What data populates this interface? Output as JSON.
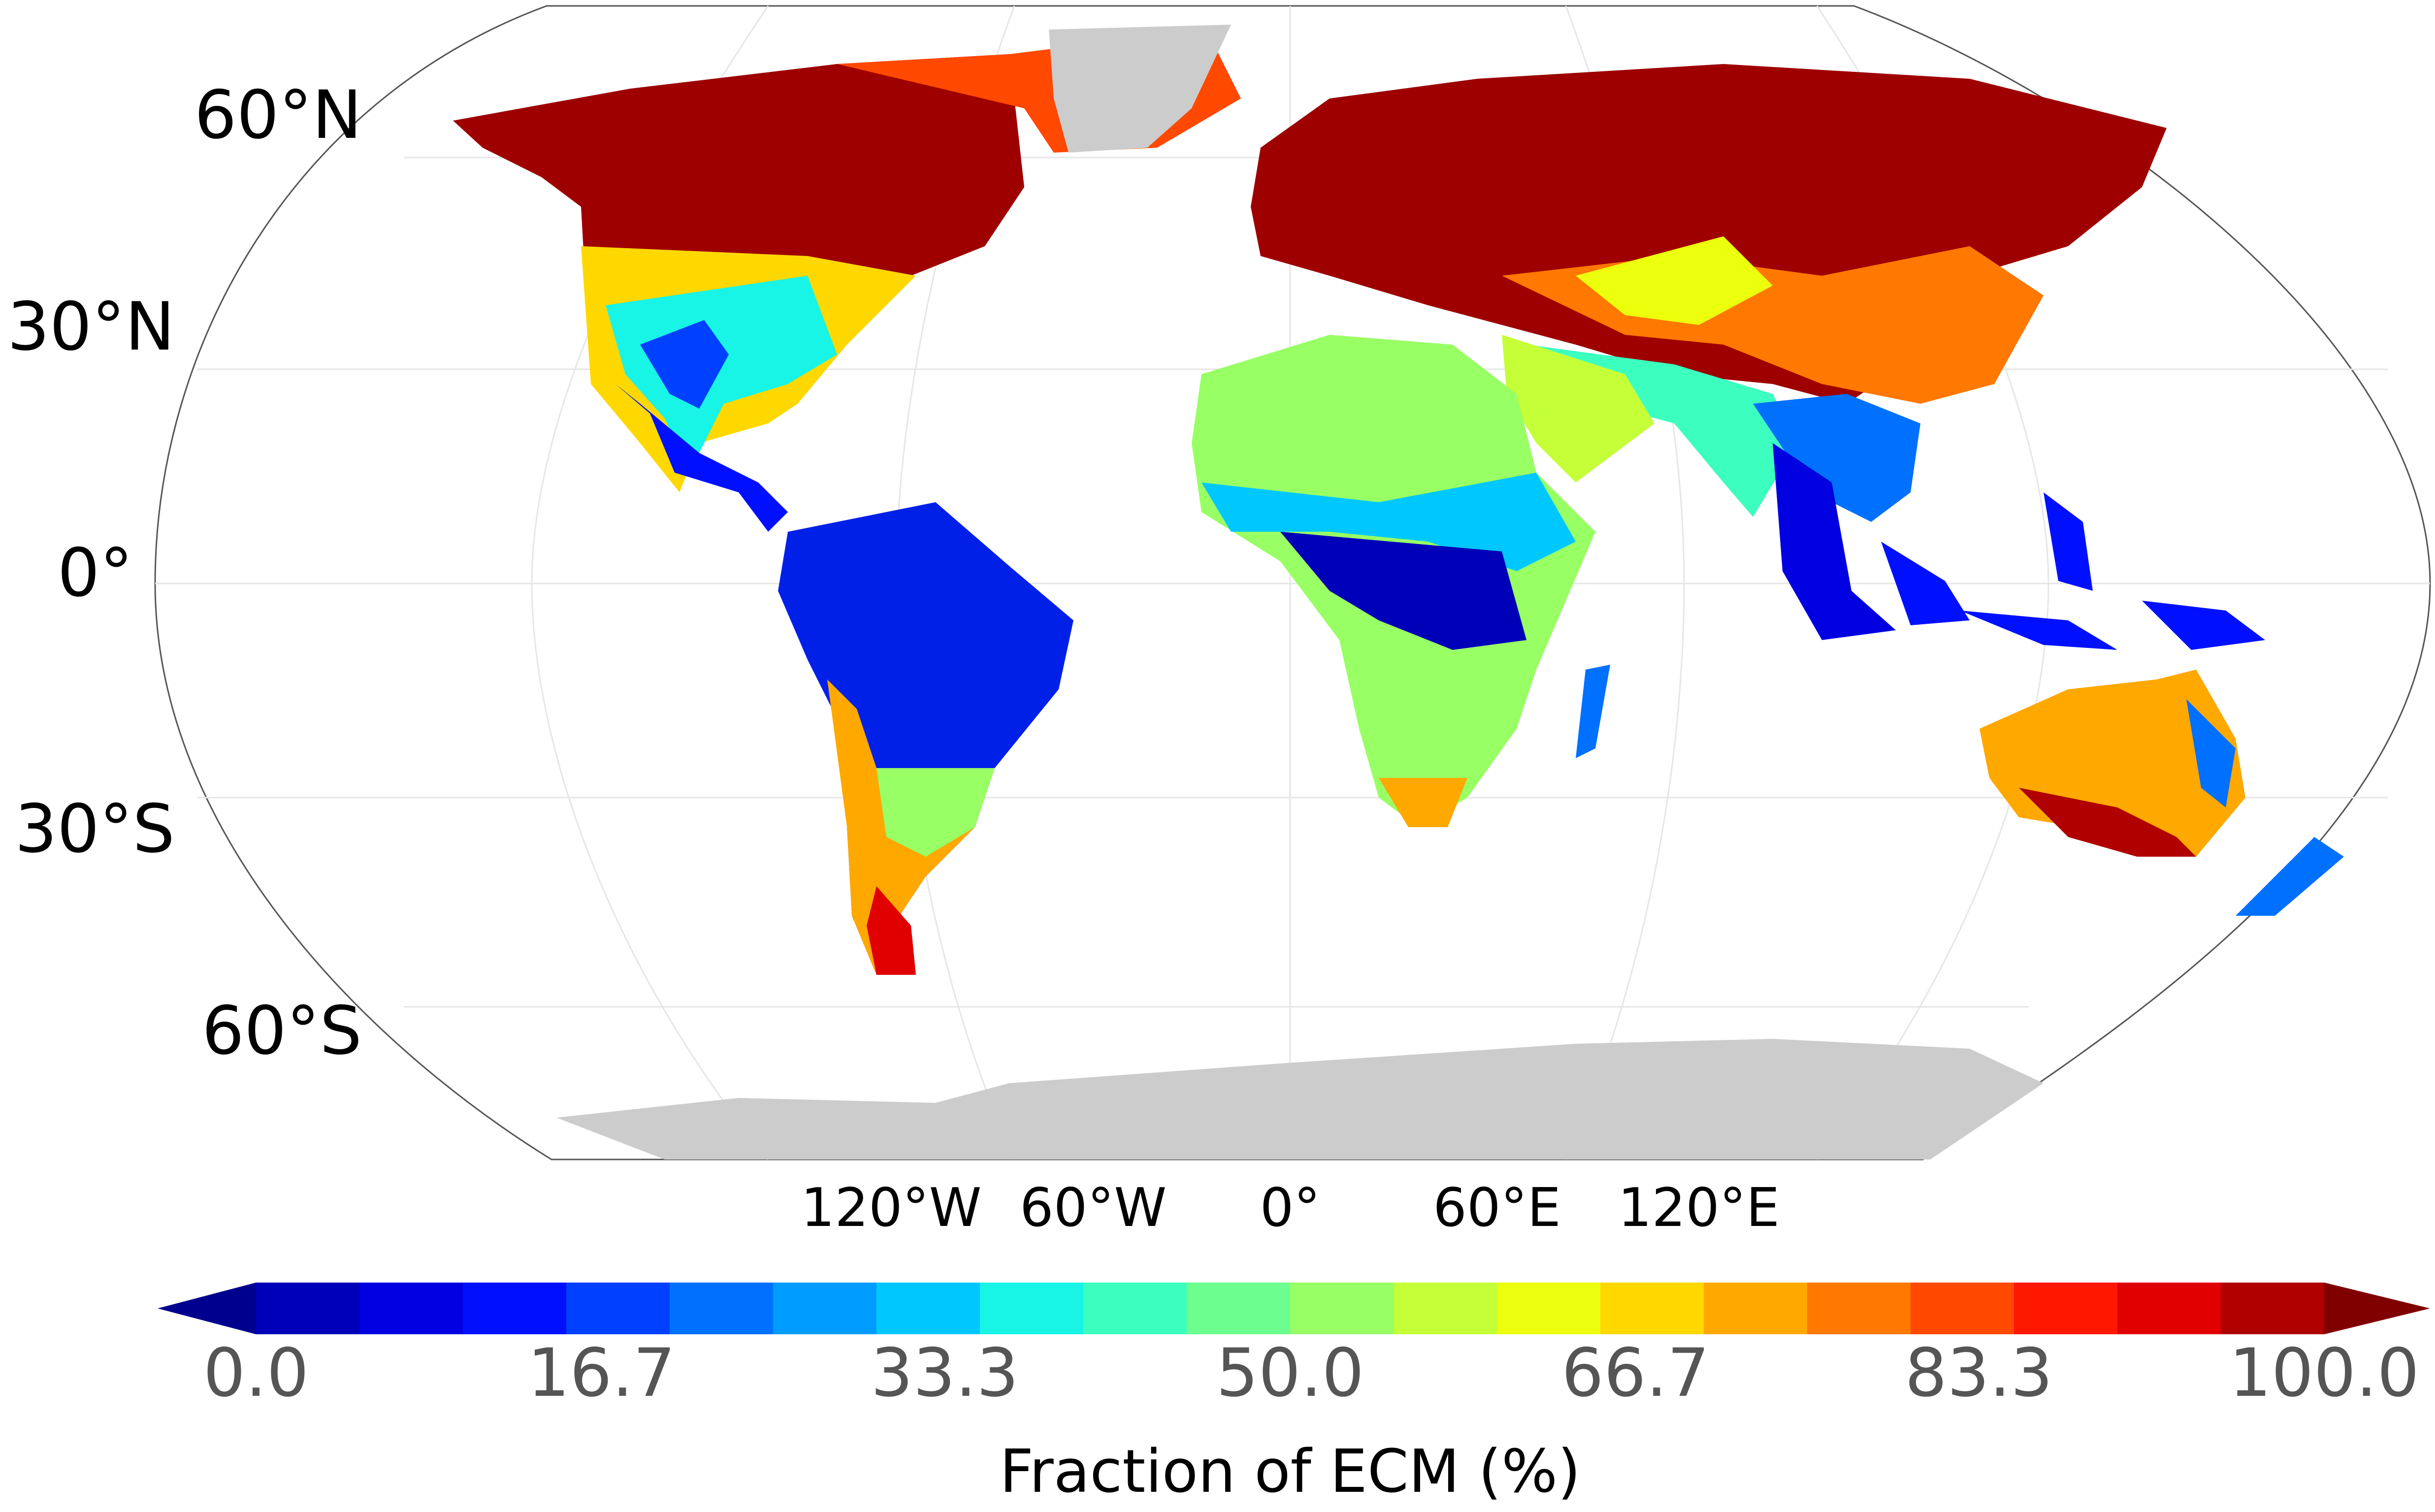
{
  "map": {
    "projection": "Robinson",
    "lat_labels": [
      "60°N",
      "30°N",
      "0°",
      "30°S",
      "60°S"
    ],
    "lon_labels": [
      "120°W",
      "60°W",
      "0°",
      "60°E",
      "120°E"
    ],
    "land_nodata_color": "#cccccc",
    "ocean_color": "#ffffff"
  },
  "colorbar": {
    "title": "Fraction of ECM (%)",
    "ticks": [
      "0.0",
      "16.7",
      "33.3",
      "50.0",
      "66.7",
      "83.3",
      "100.0"
    ],
    "range": [
      0,
      100
    ],
    "extend": "both",
    "colormap": "jet",
    "colors": [
      "#00008f",
      "#0000b8",
      "#0000e0",
      "#0010ff",
      "#0040ff",
      "#0070ff",
      "#009cff",
      "#00c8ff",
      "#18f4e6",
      "#3cffbf",
      "#6cff8f",
      "#98ff64",
      "#c4ff38",
      "#ecff0c",
      "#ffd800",
      "#ffa800",
      "#ff7800",
      "#ff4800",
      "#ff1800",
      "#e00000",
      "#b00000",
      "#800000"
    ]
  }
}
